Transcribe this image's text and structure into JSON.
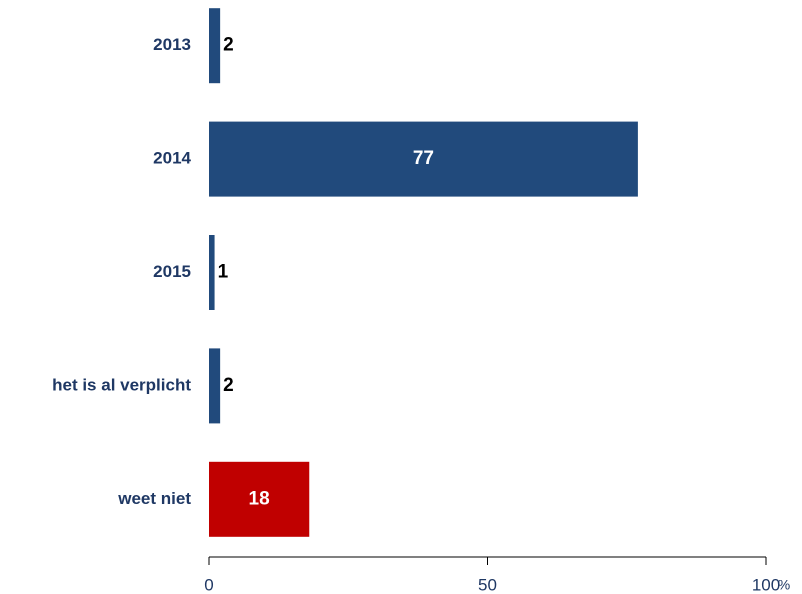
{
  "chart_data": {
    "type": "bar",
    "orientation": "horizontal",
    "categories": [
      "2013",
      "2014",
      "2015",
      "het is al verplicht",
      "weet niet"
    ],
    "values": [
      2,
      77,
      1,
      2,
      18
    ],
    "colors": [
      "#214a7c",
      "#214a7c",
      "#214a7c",
      "#214a7c",
      "#c00000"
    ],
    "xlim": [
      0,
      100
    ],
    "xticks": [
      0,
      50,
      100
    ],
    "x_unit": "%",
    "grid": false
  }
}
